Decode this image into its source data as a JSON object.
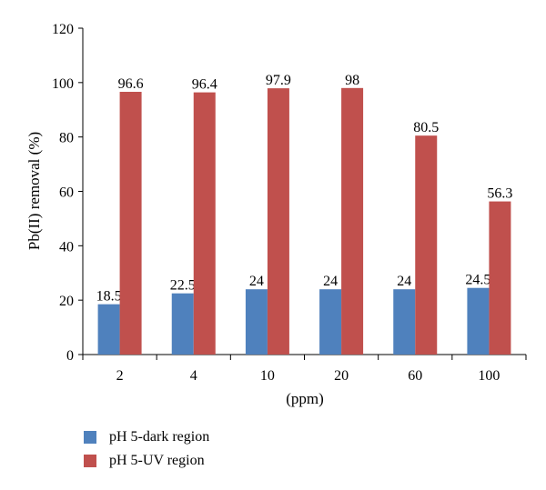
{
  "chart_data": {
    "type": "bar",
    "categories": [
      "2",
      "4",
      "10",
      "20",
      "60",
      "100"
    ],
    "series": [
      {
        "name": "pH 5-dark region",
        "values": [
          18.5,
          22.5,
          24,
          24,
          24,
          24.5
        ],
        "labels": [
          "18.5",
          "22.5",
          "24",
          "24",
          "24",
          "24.5"
        ],
        "color": "#4f81bd"
      },
      {
        "name": "pH 5-UV region",
        "values": [
          96.6,
          96.4,
          97.9,
          98,
          80.5,
          56.3
        ],
        "labels": [
          "96.6",
          "96.4",
          "97.9",
          "98",
          "80.5",
          "56.3"
        ],
        "color": "#c0504d"
      }
    ],
    "xlabel": "(ppm)",
    "ylabel": "Pb(II) removal (%)",
    "ylim": [
      0,
      120
    ],
    "yticks": [
      "0",
      "20",
      "40",
      "60",
      "80",
      "100",
      "120"
    ],
    "grid": false,
    "legend_position": "bottom-left"
  }
}
